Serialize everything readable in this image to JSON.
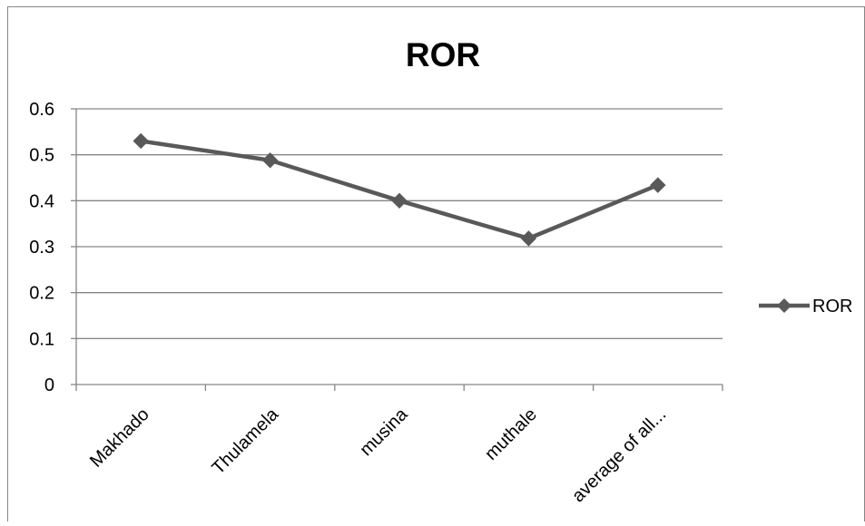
{
  "chart_data": {
    "type": "line",
    "title": "ROR",
    "xlabel": "",
    "ylabel": "",
    "categories": [
      "Makhado",
      "Thulamela",
      "musina",
      "muthale",
      "average of all..."
    ],
    "series": [
      {
        "name": "ROR",
        "values": [
          0.53,
          0.488,
          0.4,
          0.318,
          0.434
        ]
      }
    ],
    "ylim": [
      0,
      0.6
    ],
    "yticks": [
      "0",
      "0.1",
      "0.2",
      "0.3",
      "0.4",
      "0.5",
      "0.6"
    ],
    "grid": true,
    "legend_position": "right",
    "colors": {
      "series": "#595959",
      "grid": "#868686",
      "axis": "#868686"
    }
  }
}
